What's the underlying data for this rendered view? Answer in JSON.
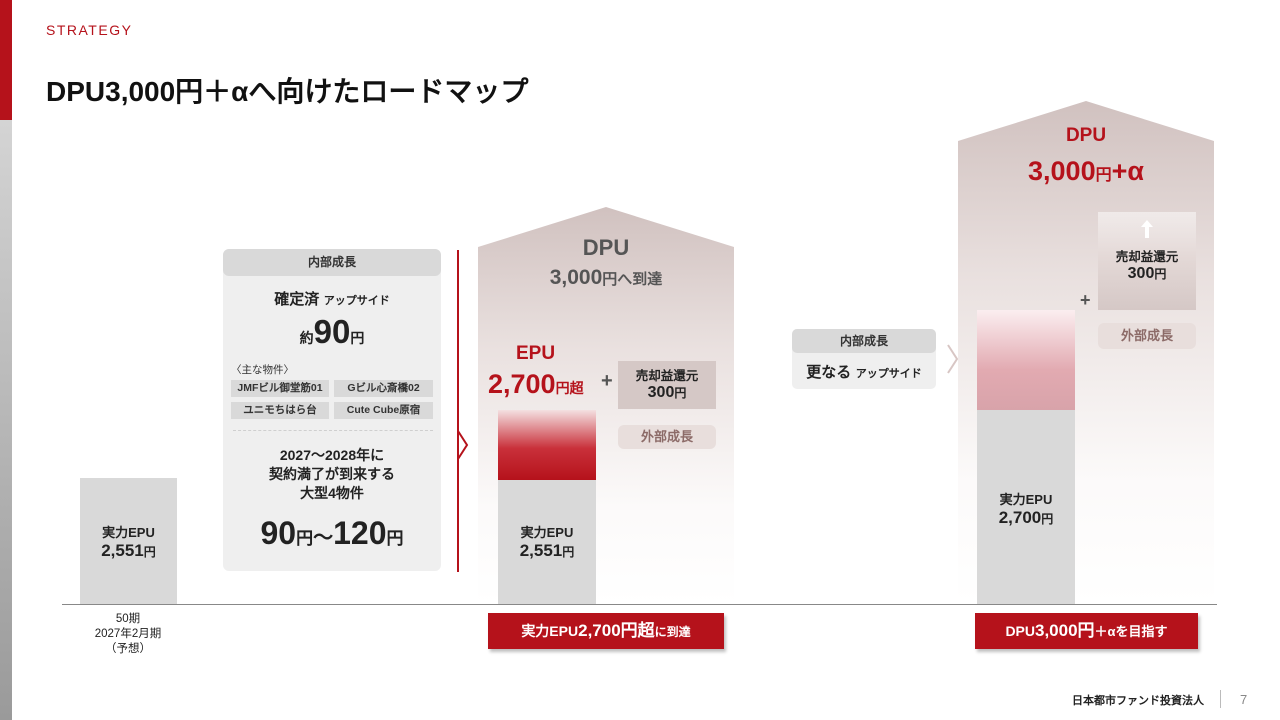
{
  "header": {
    "section": "STRATEGY",
    "title": "DPU3,000円＋αへ向けたロードマップ"
  },
  "stage1": {
    "label": "実力EPU",
    "value": "2,551",
    "unit": "円",
    "period_1": "50期",
    "period_2": "2027年2月期",
    "period_3": "（予想）"
  },
  "internal_panel": {
    "header": "内部成長",
    "confirmed_label": "確定済",
    "confirmed_sub": "アップサイド",
    "approx_prefix": "約",
    "approx_value": "90",
    "approx_unit": "円",
    "properties_label": "〈主な物件〉",
    "properties": [
      "JMFビル御堂筋01",
      "Gビル心斎橋02",
      "ユニモちはら台",
      "Cute Cube原宿"
    ],
    "expiry_line1": "2027～2028年に",
    "expiry_line2": "契約満了が到来する",
    "expiry_line3": "大型4物件",
    "range_low": "90",
    "range_unit1": "円",
    "range_sep": "～",
    "range_high": "120",
    "range_unit2": "円"
  },
  "stage2": {
    "dpu_label": "DPU",
    "dpu_value": "3,000",
    "dpu_suffix": "円へ到達",
    "epu_label": "EPU",
    "epu_value": "2,700",
    "epu_suffix": "円超",
    "plus": "+",
    "gain_label": "売却益還元",
    "gain_value": "300",
    "gain_unit": "円",
    "external_label": "外部成長",
    "base_label": "実力EPU",
    "base_value": "2,551",
    "base_unit": "円",
    "cta_pre": "実力EPU",
    "cta_value": "2,700円超",
    "cta_post": "に到達"
  },
  "stage3_panel": {
    "header": "内部成長",
    "more_label": "更なる",
    "more_sub": "アップサイド"
  },
  "stage3": {
    "dpu_label": "DPU",
    "dpu_value": "3,000",
    "dpu_unit": "円",
    "dpu_alpha": "+α",
    "gain_label": "売却益還元",
    "gain_value": "300",
    "gain_unit": "円",
    "plus": "+",
    "external_label": "外部成長",
    "base_label": "実力EPU",
    "base_value": "2,700",
    "base_unit": "円",
    "cta_pre": "DPU",
    "cta_value": "3,000円",
    "cta_post": "＋αを目指す"
  },
  "footer": {
    "company": "日本都市ファンド投資法人",
    "page": "7"
  },
  "colors": {
    "accent_red": "#b5121b",
    "grey_block": "#d9d9d9",
    "tan": "#d5c8c6"
  }
}
